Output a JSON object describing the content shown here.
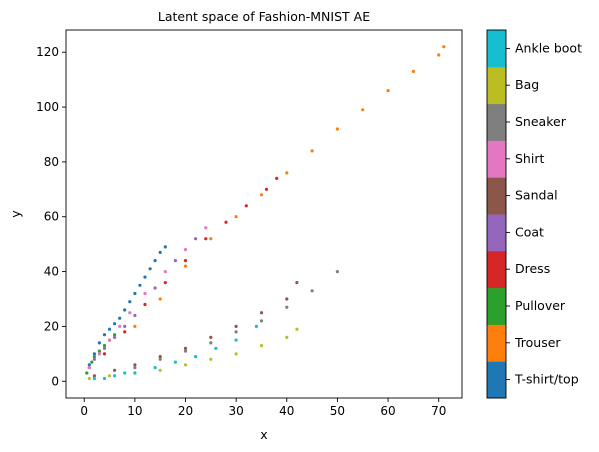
{
  "chart_data": {
    "type": "scatter",
    "title": "Latent space of Fashion-MNIST AE",
    "xlabel": "x",
    "ylabel": "y",
    "xlim": [
      -3.6,
      74.6
    ],
    "ylim": [
      -6.1,
      128.1
    ],
    "xticks": [
      0,
      10,
      20,
      30,
      40,
      50,
      60,
      70
    ],
    "yticks": [
      0,
      20,
      40,
      60,
      80,
      100,
      120
    ],
    "grid": false,
    "colorbar": {
      "labels": [
        "T-shirt/top",
        "Trouser",
        "Pullover",
        "Dress",
        "Coat",
        "Sandal",
        "Shirt",
        "Sneaker",
        "Bag",
        "Ankle boot"
      ],
      "colors": [
        "#1f77b4",
        "#ff7f0e",
        "#2ca02c",
        "#d62728",
        "#9467bd",
        "#8c564b",
        "#e377c2",
        "#7f7f7f",
        "#bcbd22",
        "#17becf"
      ]
    },
    "series": [
      {
        "name": "T-shirt/top",
        "color": "#1f77b4",
        "x": [
          1,
          2,
          3,
          4,
          5,
          6,
          7,
          8,
          9,
          10,
          11,
          12,
          13,
          14,
          15,
          16
        ],
        "y": [
          6,
          10,
          14,
          17,
          19,
          21,
          23,
          26,
          29,
          32,
          35,
          38,
          41,
          44,
          47,
          49
        ]
      },
      {
        "name": "Trouser",
        "color": "#ff7f0e",
        "x": [
          10,
          15,
          20,
          25,
          30,
          35,
          40,
          45,
          50,
          55,
          60,
          65,
          70,
          71
        ],
        "y": [
          20,
          30,
          42,
          52,
          60,
          68,
          76,
          84,
          92,
          99,
          106,
          113,
          119,
          122
        ]
      },
      {
        "name": "Pullover",
        "color": "#2ca02c",
        "x": [
          0.5,
          1,
          1.5,
          2,
          3,
          4,
          5,
          6
        ],
        "y": [
          3,
          5,
          7,
          9,
          11,
          13,
          15,
          17
        ]
      },
      {
        "name": "Dress",
        "color": "#d62728",
        "x": [
          4,
          8,
          12,
          16,
          20,
          24,
          28,
          32,
          36,
          38
        ],
        "y": [
          10,
          18,
          28,
          36,
          44,
          52,
          58,
          64,
          70,
          74
        ]
      },
      {
        "name": "Coat",
        "color": "#9467bd",
        "x": [
          2,
          4,
          6,
          8,
          10,
          14,
          18,
          22
        ],
        "y": [
          8,
          12,
          16,
          20,
          24,
          34,
          44,
          52
        ]
      },
      {
        "name": "Sandal",
        "color": "#8c564b",
        "x": [
          2,
          6,
          10,
          15,
          20,
          25,
          30,
          35,
          40,
          42
        ],
        "y": [
          2,
          4,
          6,
          9,
          12,
          16,
          20,
          25,
          30,
          36
        ]
      },
      {
        "name": "Shirt",
        "color": "#e377c2",
        "x": [
          1,
          3,
          5,
          7,
          9,
          12,
          16,
          20,
          24
        ],
        "y": [
          5,
          10,
          15,
          20,
          25,
          32,
          40,
          48,
          56
        ]
      },
      {
        "name": "Sneaker",
        "color": "#7f7f7f",
        "x": [
          10,
          15,
          20,
          25,
          30,
          35,
          40,
          45,
          50
        ],
        "y": [
          5,
          8,
          11,
          14,
          18,
          22,
          27,
          33,
          40
        ]
      },
      {
        "name": "Bag",
        "color": "#bcbd22",
        "x": [
          1,
          5,
          10,
          15,
          20,
          25,
          30,
          35,
          40,
          42
        ],
        "y": [
          1,
          2,
          3,
          4,
          6,
          8,
          10,
          13,
          16,
          19
        ]
      },
      {
        "name": "Ankle boot",
        "color": "#17becf",
        "x": [
          2,
          4,
          6,
          8,
          10,
          14,
          18,
          22,
          26,
          30,
          34
        ],
        "y": [
          1,
          1,
          2,
          3,
          3,
          5,
          7,
          9,
          12,
          15,
          20
        ]
      }
    ]
  }
}
